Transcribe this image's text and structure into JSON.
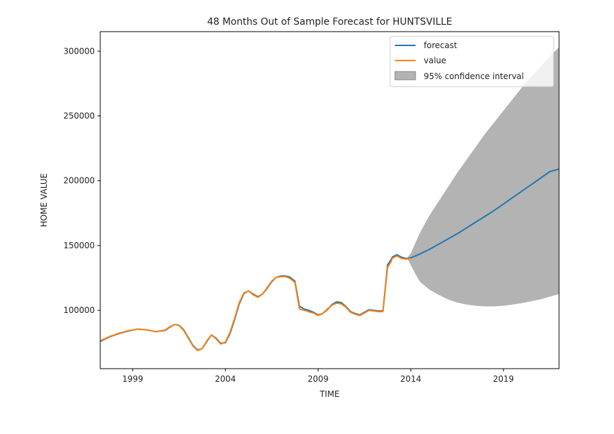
{
  "chart_data": {
    "type": "line",
    "title": "48 Months Out of Sample Forecast for HUNTSVILLE",
    "xlabel": "TIME",
    "ylabel": "HOME VALUE",
    "xlim": [
      1997.25,
      2022.0
    ],
    "ylim": [
      55000,
      315000
    ],
    "x_ticks": [
      1999,
      2004,
      2009,
      2014,
      2019
    ],
    "x_tick_labels": [
      "1999",
      "2004",
      "2009",
      "2014",
      "2019"
    ],
    "y_ticks": [
      100000,
      150000,
      200000,
      250000,
      300000
    ],
    "y_tick_labels": [
      "100000",
      "150000",
      "200000",
      "250000",
      "300000"
    ],
    "grid": false,
    "legend_position": "top-right",
    "series": [
      {
        "name": "forecast",
        "color": "#1f77b4",
        "x": [
          1997.25,
          1997.75,
          1998.25,
          1998.75,
          1999.25,
          1999.75,
          2000.25,
          2000.75,
          2001.0,
          2001.25,
          2001.5,
          2001.75,
          2002.0,
          2002.25,
          2002.5,
          2002.75,
          2003.0,
          2003.25,
          2003.5,
          2003.75,
          2004.0,
          2004.25,
          2004.5,
          2004.75,
          2005.0,
          2005.25,
          2005.5,
          2005.75,
          2006.0,
          2006.25,
          2006.5,
          2006.75,
          2007.0,
          2007.25,
          2007.5,
          2007.75,
          2008.0,
          2008.25,
          2008.5,
          2008.58,
          2008.75,
          2009.0,
          2009.25,
          2009.5,
          2009.75,
          2010.0,
          2010.25,
          2010.5,
          2010.75,
          2011.0,
          2011.25,
          2011.5,
          2011.75,
          2012.0,
          2012.25,
          2012.5,
          2012.75,
          2012.95,
          2013.0,
          2013.25,
          2013.5,
          2013.75,
          2014.0,
          2014.5,
          2015.0,
          2015.5,
          2016.0,
          2016.5,
          2017.0,
          2017.5,
          2018.0,
          2018.5,
          2019.0,
          2019.5,
          2020.0,
          2020.5,
          2021.0,
          2021.5,
          2022.0
        ],
        "values": [
          76000,
          79500,
          82000,
          84000,
          85500,
          85000,
          83500,
          84500,
          87000,
          89000,
          88500,
          85000,
          79000,
          73000,
          69500,
          70500,
          76000,
          81000,
          78500,
          74500,
          75000,
          82000,
          93000,
          105000,
          113000,
          115000,
          112500,
          110500,
          112500,
          117000,
          122000,
          125500,
          126500,
          126500,
          125500,
          122500,
          103000,
          101000,
          100000,
          99500,
          98500,
          96500,
          97500,
          100500,
          104500,
          106500,
          106000,
          103000,
          99000,
          97500,
          96500,
          98500,
          100500,
          100000,
          99500,
          99500,
          135000,
          139500,
          141000,
          143000,
          141000,
          140000,
          140500,
          143500,
          147000,
          151000,
          155000,
          159000,
          163500,
          168000,
          172500,
          177000,
          182000,
          187000,
          192000,
          197000,
          202000,
          207000,
          209000
        ]
      },
      {
        "name": "value",
        "color": "#ff7f0e",
        "x": [
          1997.25,
          1997.75,
          1998.25,
          1998.75,
          1999.25,
          1999.75,
          2000.25,
          2000.75,
          2001.0,
          2001.25,
          2001.5,
          2001.75,
          2002.0,
          2002.25,
          2002.5,
          2002.75,
          2003.0,
          2003.25,
          2003.5,
          2003.75,
          2004.0,
          2004.25,
          2004.5,
          2004.75,
          2005.0,
          2005.25,
          2005.5,
          2005.75,
          2006.0,
          2006.25,
          2006.5,
          2006.75,
          2007.0,
          2007.25,
          2007.5,
          2007.75,
          2008.0,
          2008.25,
          2008.5,
          2008.58,
          2008.75,
          2009.0,
          2009.25,
          2009.5,
          2009.75,
          2010.0,
          2010.25,
          2010.5,
          2010.75,
          2011.0,
          2011.25,
          2011.5,
          2011.75,
          2012.0,
          2012.25,
          2012.5,
          2012.75,
          2012.95,
          2013.0,
          2013.25,
          2013.5,
          2013.75,
          2014.0
        ],
        "values": [
          76500,
          79800,
          82300,
          84300,
          85500,
          85000,
          83500,
          84800,
          87300,
          89000,
          88300,
          84500,
          78500,
          72500,
          69000,
          70500,
          76500,
          81000,
          78000,
          74000,
          75500,
          83000,
          94000,
          106000,
          113500,
          115000,
          112000,
          110000,
          112500,
          117500,
          122500,
          125500,
          126000,
          126000,
          124500,
          121500,
          101000,
          100000,
          99000,
          98500,
          98000,
          96000,
          97500,
          101000,
          104000,
          105500,
          105000,
          102500,
          98500,
          97000,
          96000,
          98000,
          100000,
          99500,
          99000,
          99000,
          133000,
          138000,
          140000,
          142000,
          140000,
          139500,
          140000
        ]
      }
    ],
    "confidence_interval": {
      "name": "95% confidence interval",
      "color": "#808080",
      "x": [
        2013.85,
        2014.0,
        2014.25,
        2014.5,
        2015.0,
        2015.5,
        2016.0,
        2016.5,
        2017.0,
        2017.5,
        2018.0,
        2018.5,
        2019.0,
        2019.5,
        2020.0,
        2020.5,
        2021.0,
        2021.5,
        2022.0
      ],
      "upper": [
        141000,
        144000,
        152000,
        160000,
        173000,
        184000,
        195000,
        206000,
        216000,
        226000,
        236000,
        245000,
        254000,
        263000,
        272000,
        280000,
        288000,
        296000,
        303000
      ],
      "lower": [
        139000,
        135000,
        128000,
        122000,
        116000,
        112000,
        108500,
        106000,
        104500,
        103500,
        103000,
        103000,
        103500,
        104500,
        105500,
        107000,
        108500,
        110500,
        112500
      ]
    }
  }
}
